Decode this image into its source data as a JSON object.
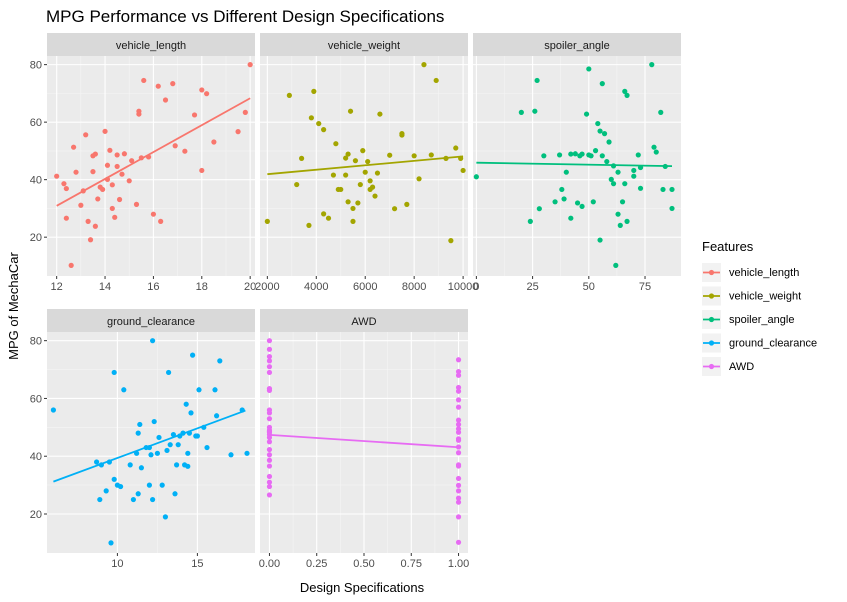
{
  "chart_data": {
    "type": "scatter",
    "title": "MPG Performance vs Different Design Specifications",
    "xlabel": "Design Specifications",
    "ylabel": "MPG of MechaCar",
    "legend": {
      "title": "Features",
      "placement": "right",
      "entries": [
        "vehicle_length",
        "vehicle_weight",
        "spoiler_angle",
        "ground_clearance",
        "AWD"
      ]
    },
    "colors": {
      "vehicle_length": "#F8766D",
      "vehicle_weight": "#A3A500",
      "spoiler_angle": "#00BF7D",
      "ground_clearance": "#00B0F6",
      "AWD": "#E76BF3"
    },
    "ylim": [
      6.5,
      83
    ],
    "yticks": [
      20,
      40,
      60,
      80
    ],
    "grid": true,
    "panels": [
      {
        "name": "vehicle_length",
        "xlim": [
          11.6,
          20.2
        ],
        "xticks": [
          12,
          14,
          16,
          18,
          20
        ],
        "xtick_labels": [
          "12",
          "14",
          "16",
          "18",
          "20"
        ],
        "trend": [
          [
            12,
            30.9
          ],
          [
            20,
            68.3
          ]
        ],
        "points": [
          [
            12.0,
            41.2
          ],
          [
            12.3,
            38.6
          ],
          [
            12.4,
            36.9
          ],
          [
            12.4,
            26.6
          ],
          [
            12.6,
            10.2
          ],
          [
            12.7,
            51.3
          ],
          [
            12.8,
            42.6
          ],
          [
            13.0,
            31.1
          ],
          [
            13.1,
            36.1
          ],
          [
            13.2,
            55.6
          ],
          [
            13.3,
            25.5
          ],
          [
            13.4,
            19.1
          ],
          [
            13.5,
            48.3
          ],
          [
            13.5,
            42.8
          ],
          [
            13.6,
            23.8
          ],
          [
            13.6,
            48.9
          ],
          [
            13.7,
            33.3
          ],
          [
            13.8,
            37.4
          ],
          [
            13.9,
            36.6
          ],
          [
            14.0,
            56.8
          ],
          [
            14.1,
            45.0
          ],
          [
            14.1,
            40.1
          ],
          [
            14.2,
            50.2
          ],
          [
            14.3,
            30.0
          ],
          [
            14.3,
            38.2
          ],
          [
            14.4,
            26.9
          ],
          [
            14.5,
            48.6
          ],
          [
            14.5,
            44.6
          ],
          [
            14.6,
            33.1
          ],
          [
            14.7,
            41.9
          ],
          [
            14.8,
            49.0
          ],
          [
            15.0,
            39.6
          ],
          [
            15.1,
            46.6
          ],
          [
            15.3,
            31.4
          ],
          [
            15.4,
            62.8
          ],
          [
            15.4,
            63.8
          ],
          [
            15.5,
            47.6
          ],
          [
            15.6,
            74.5
          ],
          [
            15.8,
            47.9
          ],
          [
            16.0,
            28.0
          ],
          [
            16.2,
            72.5
          ],
          [
            16.3,
            25.5
          ],
          [
            16.5,
            67.7
          ],
          [
            16.8,
            73.4
          ],
          [
            16.9,
            51.8
          ],
          [
            17.3,
            49.9
          ],
          [
            17.7,
            62.5
          ],
          [
            18.0,
            43.2
          ],
          [
            18.0,
            71.2
          ],
          [
            18.2,
            69.9
          ],
          [
            18.5,
            53.1
          ],
          [
            19.5,
            56.7
          ],
          [
            19.8,
            63.4
          ],
          [
            20.0,
            80.0
          ]
        ]
      },
      {
        "name": "vehicle_weight",
        "xlim": [
          1700,
          10200
        ],
        "xticks": [
          2000,
          4000,
          6000,
          8000,
          10000
        ],
        "xtick_labels": [
          "2000",
          "4000",
          "6000",
          "8000",
          "10000"
        ],
        "trend": [
          [
            2000,
            41.9
          ],
          [
            10000,
            48.1
          ]
        ],
        "points": [
          [
            2000,
            25.5
          ],
          [
            2900,
            69.3
          ],
          [
            3200,
            38.3
          ],
          [
            3400,
            47.4
          ],
          [
            3700,
            24.1
          ],
          [
            3800,
            61.5
          ],
          [
            3900,
            70.7
          ],
          [
            4100,
            59.5
          ],
          [
            4300,
            57.4
          ],
          [
            4300,
            28.1
          ],
          [
            4500,
            26.6
          ],
          [
            4700,
            41.6
          ],
          [
            4800,
            52.5
          ],
          [
            4900,
            36.6
          ],
          [
            5000,
            36.6
          ],
          [
            5200,
            47.5
          ],
          [
            5200,
            41.6
          ],
          [
            5300,
            48.9
          ],
          [
            5300,
            32.3
          ],
          [
            5400,
            63.8
          ],
          [
            5500,
            25.5
          ],
          [
            5500,
            30.0
          ],
          [
            5600,
            46.6
          ],
          [
            5700,
            31.9
          ],
          [
            5800,
            38.3
          ],
          [
            5900,
            50.1
          ],
          [
            6000,
            42.6
          ],
          [
            6100,
            46.3
          ],
          [
            6200,
            39.6
          ],
          [
            6200,
            36.6
          ],
          [
            6300,
            37.4
          ],
          [
            6400,
            34.3
          ],
          [
            6500,
            42.3
          ],
          [
            6600,
            62.8
          ],
          [
            7000,
            48.5
          ],
          [
            7200,
            29.9
          ],
          [
            7500,
            56.0
          ],
          [
            7500,
            55.5
          ],
          [
            7700,
            31.4
          ],
          [
            8000,
            48.3
          ],
          [
            8200,
            40.3
          ],
          [
            8400,
            80.0
          ],
          [
            8700,
            48.6
          ],
          [
            8900,
            74.5
          ],
          [
            9300,
            47.4
          ],
          [
            9500,
            18.8
          ],
          [
            9700,
            51.0
          ],
          [
            9900,
            47.4
          ],
          [
            10000,
            43.2
          ]
        ]
      },
      {
        "name": "spoiler_angle",
        "xlim": [
          -1.5,
          91
        ],
        "xticks": [
          0,
          25,
          50,
          75
        ],
        "xtick_labels": [
          "0",
          "25",
          "50",
          "75"
        ],
        "trend": [
          [
            0,
            45.9
          ],
          [
            87,
            44.7
          ]
        ],
        "points": [
          [
            0,
            41.0
          ],
          [
            20,
            63.4
          ],
          [
            24,
            25.5
          ],
          [
            26,
            63.8
          ],
          [
            27,
            74.5
          ],
          [
            28,
            29.9
          ],
          [
            30,
            48.3
          ],
          [
            35,
            32.3
          ],
          [
            37,
            48.6
          ],
          [
            38,
            36.6
          ],
          [
            39,
            33.3
          ],
          [
            40,
            42.6
          ],
          [
            42,
            48.9
          ],
          [
            42,
            26.6
          ],
          [
            44,
            49.0
          ],
          [
            45,
            31.9
          ],
          [
            46,
            48.3
          ],
          [
            47,
            30.7
          ],
          [
            47,
            48.9
          ],
          [
            49,
            62.8
          ],
          [
            50,
            48.6
          ],
          [
            50,
            78.5
          ],
          [
            51,
            48.3
          ],
          [
            52,
            32.3
          ],
          [
            53,
            50.1
          ],
          [
            54,
            59.5
          ],
          [
            55,
            19.0
          ],
          [
            55,
            56.9
          ],
          [
            56,
            73.4
          ],
          [
            56,
            48.3
          ],
          [
            57,
            56.0
          ],
          [
            58,
            46.3
          ],
          [
            59,
            53.1
          ],
          [
            60,
            40.1
          ],
          [
            61,
            44.8
          ],
          [
            61,
            38.6
          ],
          [
            62,
            10.2
          ],
          [
            63,
            28.0
          ],
          [
            63,
            42.6
          ],
          [
            64,
            24.1
          ],
          [
            65,
            32.3
          ],
          [
            66,
            38.6
          ],
          [
            66,
            70.7
          ],
          [
            67,
            69.3
          ],
          [
            67,
            25.5
          ],
          [
            70,
            41.2
          ],
          [
            70,
            43.2
          ],
          [
            72,
            48.6
          ],
          [
            73,
            44.2
          ],
          [
            73,
            37.0
          ],
          [
            78,
            80.0
          ],
          [
            79,
            51.3
          ],
          [
            80,
            49.6
          ],
          [
            82,
            63.4
          ],
          [
            83,
            36.6
          ],
          [
            84,
            44.6
          ],
          [
            87,
            30.0
          ],
          [
            87,
            36.6
          ]
        ]
      },
      {
        "name": "ground_clearance",
        "xlim": [
          5.6,
          18.6
        ],
        "xticks": [
          10,
          15
        ],
        "xtick_labels": [
          "10",
          "15"
        ],
        "trend": [
          [
            6.0,
            31.2
          ],
          [
            18.0,
            55.8
          ]
        ],
        "points": [
          [
            6.0,
            56.0
          ],
          [
            8.7,
            38.0
          ],
          [
            8.9,
            25.0
          ],
          [
            9.0,
            37.0
          ],
          [
            9.3,
            28.0
          ],
          [
            9.5,
            38.0
          ],
          [
            9.6,
            10.0
          ],
          [
            9.8,
            32.0
          ],
          [
            9.8,
            69.0
          ],
          [
            10.0,
            30.0
          ],
          [
            10.2,
            29.5
          ],
          [
            10.4,
            63.0
          ],
          [
            10.8,
            37.0
          ],
          [
            11.0,
            25.0
          ],
          [
            11.2,
            41.0
          ],
          [
            11.3,
            27.0
          ],
          [
            11.3,
            48.0
          ],
          [
            11.4,
            51.0
          ],
          [
            11.5,
            36.0
          ],
          [
            11.8,
            43.0
          ],
          [
            12.0,
            30.0
          ],
          [
            12.0,
            43.0
          ],
          [
            12.1,
            40.5
          ],
          [
            12.2,
            25.0
          ],
          [
            12.2,
            80.0
          ],
          [
            12.3,
            52.0
          ],
          [
            12.5,
            41.0
          ],
          [
            12.6,
            46.5
          ],
          [
            12.8,
            30.0
          ],
          [
            13.0,
            19.0
          ],
          [
            13.1,
            42.0
          ],
          [
            13.2,
            69.0
          ],
          [
            13.3,
            44.0
          ],
          [
            13.5,
            47.5
          ],
          [
            13.6,
            27.0
          ],
          [
            13.7,
            37.0
          ],
          [
            13.8,
            44.0
          ],
          [
            13.9,
            47.0
          ],
          [
            14.1,
            48.0
          ],
          [
            14.2,
            37.0
          ],
          [
            14.3,
            58.0
          ],
          [
            14.4,
            36.5
          ],
          [
            14.4,
            41.0
          ],
          [
            14.5,
            48.0
          ],
          [
            14.6,
            55.0
          ],
          [
            14.7,
            75.0
          ],
          [
            14.9,
            47.0
          ],
          [
            15.0,
            47.0
          ],
          [
            15.1,
            63.0
          ],
          [
            15.4,
            50.0
          ],
          [
            15.6,
            43.0
          ],
          [
            16.1,
            63.0
          ],
          [
            16.2,
            54.0
          ],
          [
            16.4,
            73.0
          ],
          [
            17.1,
            40.5
          ],
          [
            17.8,
            56.0
          ],
          [
            18.1,
            41.0
          ]
        ]
      },
      {
        "name": "AWD",
        "xlim": [
          -0.05,
          1.05
        ],
        "xticks": [
          0,
          0.25,
          0.5,
          0.75,
          1
        ],
        "xtick_labels": [
          "0.00",
          "0.25",
          "0.50",
          "0.75",
          "1.00"
        ],
        "trend": [
          [
            0,
            47.4
          ],
          [
            1,
            43.1
          ]
        ],
        "points": [
          [
            0,
            80.0
          ],
          [
            0,
            77.0
          ],
          [
            0,
            74.5
          ],
          [
            0,
            73.0
          ],
          [
            0,
            71.0
          ],
          [
            0,
            69.0
          ],
          [
            0,
            63.4
          ],
          [
            0,
            62.8
          ],
          [
            0,
            56.0
          ],
          [
            0,
            55.0
          ],
          [
            0,
            53.0
          ],
          [
            0,
            50.0
          ],
          [
            0,
            49.0
          ],
          [
            0,
            48.5
          ],
          [
            0,
            48.3
          ],
          [
            0,
            47.5
          ],
          [
            0,
            46.5
          ],
          [
            0,
            45.0
          ],
          [
            0,
            42.3
          ],
          [
            0,
            40.5
          ],
          [
            0,
            38.6
          ],
          [
            0,
            36.6
          ],
          [
            0,
            33.0
          ],
          [
            0,
            31.0
          ],
          [
            0,
            29.5
          ],
          [
            0,
            26.6
          ],
          [
            1,
            73.4
          ],
          [
            1,
            69.3
          ],
          [
            1,
            68.0
          ],
          [
            1,
            63.8
          ],
          [
            1,
            62.5
          ],
          [
            1,
            59.5
          ],
          [
            1,
            57.0
          ],
          [
            1,
            52.5
          ],
          [
            1,
            51.0
          ],
          [
            1,
            49.5
          ],
          [
            1,
            48.3
          ],
          [
            1,
            46.0
          ],
          [
            1,
            45.5
          ],
          [
            1,
            43.2
          ],
          [
            1,
            41.2
          ],
          [
            1,
            37.0
          ],
          [
            1,
            36.6
          ],
          [
            1,
            32.3
          ],
          [
            1,
            29.9
          ],
          [
            1,
            28.0
          ],
          [
            1,
            25.5
          ],
          [
            1,
            24.1
          ],
          [
            1,
            19.0
          ],
          [
            1,
            10.2
          ]
        ]
      }
    ]
  }
}
